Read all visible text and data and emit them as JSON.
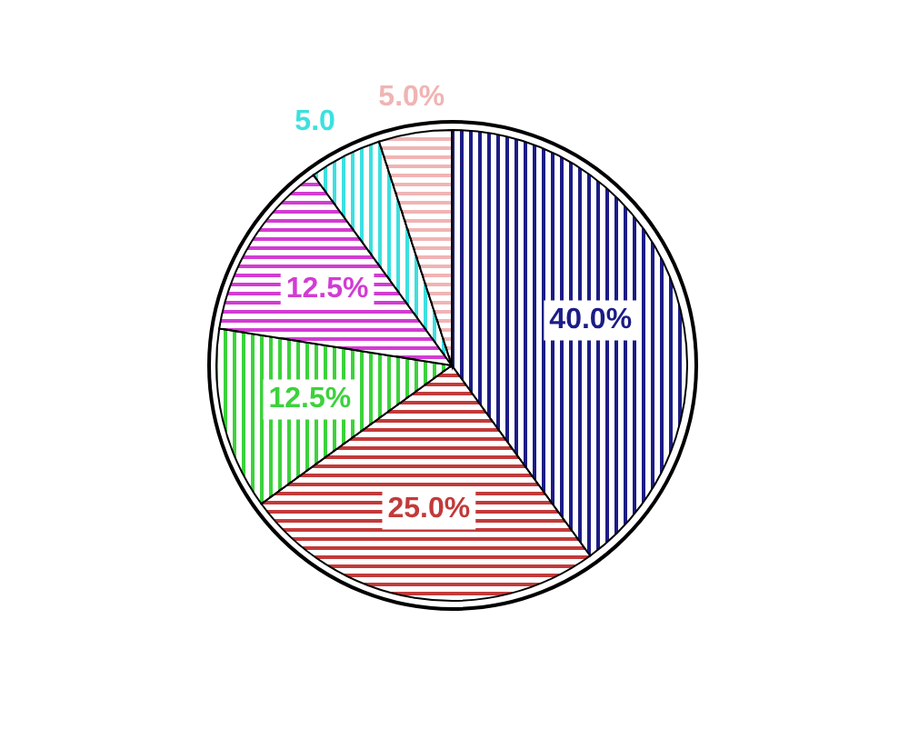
{
  "chart_data": {
    "type": "pie",
    "categories": [
      null,
      null,
      null,
      null,
      null,
      null
    ],
    "values": [
      40,
      25,
      12.5,
      12.5,
      5,
      5
    ],
    "colors": [
      "#1c1c86",
      "#c23a3a",
      "#3cd23c",
      "#d23cd2",
      "#3ce0e0",
      "#f0b4b4"
    ],
    "value_labels": [
      "40.0%",
      "25.0%",
      "12.5%",
      "12.5%",
      "5.0",
      "5.0%"
    ]
  }
}
